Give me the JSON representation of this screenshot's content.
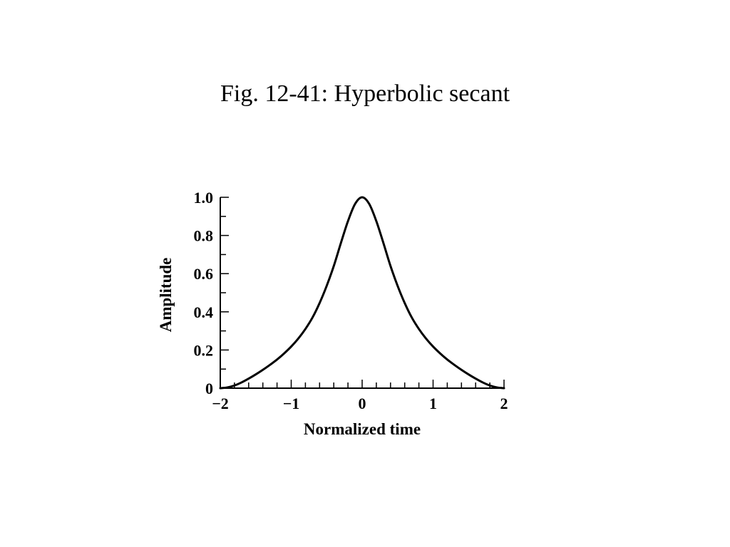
{
  "slide": {
    "title": "Fig. 12-41: Hyperbolic secant"
  },
  "chart_data": {
    "type": "line",
    "title": "Fig. 12-41: Hyperbolic secant",
    "xlabel": "Normalized time",
    "ylabel": "Amplitude",
    "xlim": [
      -2,
      2
    ],
    "ylim": [
      0,
      1.0
    ],
    "x_ticks": [
      -2,
      -1,
      0,
      1,
      2
    ],
    "x_tick_labels": [
      "−2",
      "−1",
      "0",
      "1",
      "2"
    ],
    "x_minor_step": 0.2,
    "y_ticks": [
      0,
      0.2,
      0.4,
      0.6,
      0.8,
      1.0
    ],
    "y_tick_labels": [
      "0",
      "0.2",
      "0.4",
      "0.6",
      "0.8",
      "1.0"
    ],
    "y_minor_step": 0.1,
    "grid": false,
    "series": [
      {
        "color": "#000000",
        "x": [
          -2.0,
          -1.9,
          -1.8,
          -1.7,
          -1.6,
          -1.5,
          -1.4,
          -1.3,
          -1.2,
          -1.1,
          -1.0,
          -0.9,
          -0.8,
          -0.7,
          -0.6,
          -0.5,
          -0.4,
          -0.3,
          -0.2,
          -0.1,
          0.0,
          0.1,
          0.2,
          0.3,
          0.4,
          0.5,
          0.6,
          0.7,
          0.8,
          0.9,
          1.0,
          1.1,
          1.2,
          1.3,
          1.4,
          1.5,
          1.6,
          1.7,
          1.8,
          1.9,
          2.0
        ],
        "y": [
          0.0,
          0.004,
          0.014,
          0.03,
          0.05,
          0.072,
          0.096,
          0.122,
          0.15,
          0.182,
          0.218,
          0.26,
          0.31,
          0.37,
          0.446,
          0.536,
          0.64,
          0.76,
          0.875,
          0.965,
          1.0,
          0.965,
          0.875,
          0.76,
          0.64,
          0.536,
          0.446,
          0.37,
          0.31,
          0.26,
          0.218,
          0.182,
          0.15,
          0.122,
          0.096,
          0.072,
          0.05,
          0.03,
          0.014,
          0.004,
          0.0
        ]
      }
    ]
  }
}
